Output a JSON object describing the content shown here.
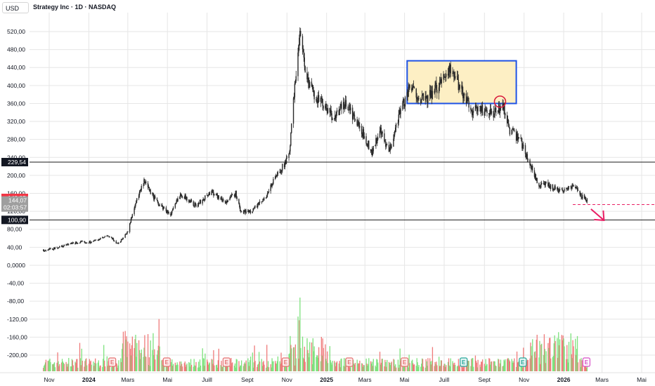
{
  "header": {
    "currency": "USD",
    "title": "Strategy Inc · 1D · NASDAQ"
  },
  "chart_data": {
    "type": "candlestick",
    "ylim": [
      -230,
      560
    ],
    "y_ticks": [
      "520,00",
      "480,00",
      "440,00",
      "400,00",
      "360,00",
      "320,00",
      "280,00",
      "240,00",
      "200,00",
      "160,00",
      "120,00",
      "80,00",
      "40,00",
      "0,0000",
      "-40,00",
      "-80,00",
      "-120,00",
      "-160,00",
      "-200,00"
    ],
    "y_tick_values": [
      520,
      480,
      440,
      400,
      360,
      320,
      280,
      240,
      200,
      160,
      120,
      80,
      40,
      0,
      -40,
      -80,
      -120,
      -160,
      -200
    ],
    "x_ticks": [
      "Nov",
      "2024",
      "Mars",
      "Mai",
      "Juill",
      "Sept",
      "Nov",
      "2025",
      "Mars",
      "Mai",
      "Juill",
      "Sept",
      "Nov",
      "2026",
      "Mars",
      "Mai"
    ],
    "x_tick_dates": [
      "2023-11-01",
      "2024-01-01",
      "2024-03-01",
      "2024-05-01",
      "2024-07-01",
      "2024-09-01",
      "2024-11-01",
      "2025-01-01",
      "2025-03-01",
      "2025-05-01",
      "2025-07-01",
      "2025-09-01",
      "2025-11-01",
      "2026-01-01",
      "2026-03-01",
      "2026-05-01"
    ],
    "bold_x_ticks": [
      "2024",
      "2025",
      "2026"
    ],
    "price_path": [
      [
        "2023-10-23",
        32
      ],
      [
        "2023-11-15",
        40
      ],
      [
        "2023-12-10",
        50
      ],
      [
        "2024-01-05",
        52
      ],
      [
        "2024-01-31",
        65
      ],
      [
        "2024-02-15",
        48
      ],
      [
        "2024-03-01",
        75
      ],
      [
        "2024-03-12",
        135
      ],
      [
        "2024-03-26",
        185
      ],
      [
        "2024-04-15",
        140
      ],
      [
        "2024-05-06",
        112
      ],
      [
        "2024-05-21",
        160
      ],
      [
        "2024-06-14",
        132
      ],
      [
        "2024-07-08",
        165
      ],
      [
        "2024-07-29",
        140
      ],
      [
        "2024-08-14",
        160
      ],
      [
        "2024-08-22",
        118
      ],
      [
        "2024-09-06",
        120
      ],
      [
        "2024-09-26",
        145
      ],
      [
        "2024-10-16",
        200
      ],
      [
        "2024-11-04",
        240
      ],
      [
        "2024-11-14",
        410
      ],
      [
        "2024-11-20",
        520
      ],
      [
        "2024-12-04",
        400
      ],
      [
        "2024-12-19",
        370
      ],
      [
        "2025-01-10",
        330
      ],
      [
        "2025-02-01",
        360
      ],
      [
        "2025-02-13",
        325
      ],
      [
        "2025-03-03",
        280
      ],
      [
        "2025-03-12",
        250
      ],
      [
        "2025-03-24",
        300
      ],
      [
        "2025-04-07",
        250
      ],
      [
        "2025-04-23",
        340
      ],
      [
        "2025-05-10",
        395
      ],
      [
        "2025-06-02",
        365
      ],
      [
        "2025-06-22",
        400
      ],
      [
        "2025-07-08",
        440
      ],
      [
        "2025-07-26",
        395
      ],
      [
        "2025-08-13",
        345
      ],
      [
        "2025-08-31",
        345
      ],
      [
        "2025-09-14",
        335
      ],
      [
        "2025-09-30",
        355
      ],
      [
        "2025-10-10",
        300
      ],
      [
        "2025-10-27",
        275
      ],
      [
        "2025-11-12",
        220
      ],
      [
        "2025-11-24",
        175
      ],
      [
        "2025-12-04",
        180
      ],
      [
        "2025-12-24",
        168
      ],
      [
        "2026-01-05",
        168
      ],
      [
        "2026-01-15",
        178
      ],
      [
        "2026-01-31",
        150
      ],
      [
        "2026-02-07",
        145
      ]
    ],
    "horizontal_levels": [
      {
        "label": "229,54",
        "value": 229.54
      },
      {
        "label": "100,90",
        "value": 100.9
      }
    ],
    "last_price": {
      "label": "149,85",
      "value": 149.85,
      "color": "#f23645"
    },
    "current_price": {
      "label": "144,07",
      "countdown": "02:03:57",
      "value": 144.07
    },
    "drawings": {
      "rectangle": {
        "x_start": "2025-05-05",
        "x_end": "2025-10-20",
        "y_top": 455,
        "y_bottom": 360,
        "fill": "#fdefc4",
        "stroke": "#1e53e5"
      },
      "circle": {
        "x": "2025-09-25",
        "y": 364,
        "color": "#d81b3c"
      },
      "dashed_line": {
        "x_start": "2026-01-15",
        "value": 135,
        "color": "#e91e63"
      },
      "arrow": {
        "color": "#e91e63",
        "direction": "down-right"
      }
    },
    "earnings_markers": [
      {
        "date": "2024-02-06",
        "label": "E",
        "type": "past"
      },
      {
        "date": "2024-04-30",
        "label": "E",
        "type": "past"
      },
      {
        "date": "2024-07-31",
        "label": "E",
        "type": "past"
      },
      {
        "date": "2024-10-30",
        "label": "E",
        "type": "past"
      },
      {
        "date": "2025-02-05",
        "label": "E",
        "type": "past"
      },
      {
        "date": "2025-05-01",
        "label": "E",
        "type": "past"
      },
      {
        "date": "2025-07-31",
        "label": "E",
        "type": "positive"
      },
      {
        "date": "2025-10-30",
        "label": "E",
        "type": "positive"
      },
      {
        "date": "2026-02-05",
        "label": "E",
        "type": "upcoming"
      }
    ],
    "colors": {
      "up": "#26a69a",
      "down": "#ef5350",
      "volume_up": "#7ee27e",
      "volume_down": "#ef7b7b",
      "candle": "#2a2a2a",
      "grid": "#e6e6e6"
    }
  }
}
